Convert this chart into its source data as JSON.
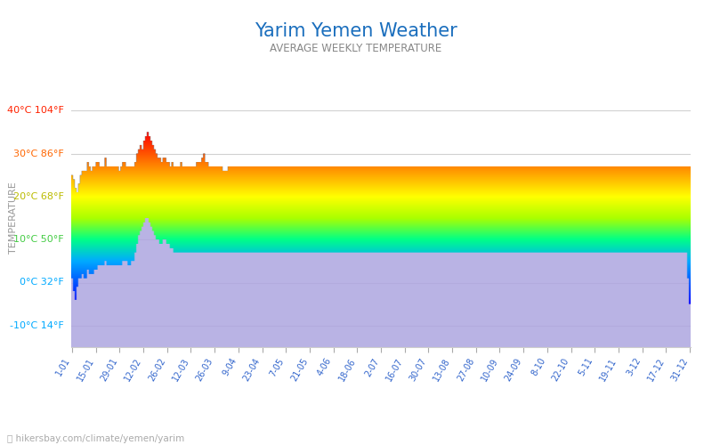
{
  "title": "Yarim Yemen Weather",
  "subtitle": "AVERAGE WEEKLY TEMPERATURE",
  "ylabel": "TEMPERATURE",
  "xlabel_ticks": [
    "1-01",
    "15-01",
    "29-01",
    "12-02",
    "26-02",
    "12-03",
    "26-03",
    "9-04",
    "23-04",
    "7-05",
    "21-05",
    "4-06",
    "18-06",
    "2-07",
    "16-07",
    "30-07",
    "13-08",
    "27-08",
    "10-09",
    "24-09",
    "8-10",
    "22-10",
    "5-11",
    "19-11",
    "3-12",
    "17-12",
    "31-12"
  ],
  "ytick_vals": [
    -10,
    0,
    10,
    20,
    30,
    40
  ],
  "ylim": [
    -15,
    45
  ],
  "ytick_label_map": {
    "-10": "-10°C 14°F",
    "0": "0°C 32°F",
    "10": "10°C 50°F",
    "20": "20°C 68°F",
    "30": "30°C 86°F",
    "40": "40°C 104°F"
  },
  "ytick_color_map": {
    "-10": "#00aaff",
    "0": "#00aaff",
    "10": "#44cc44",
    "20": "#bbbb00",
    "30": "#ff6600",
    "40": "#ff2200"
  },
  "title_color": "#1a6ebd",
  "subtitle_color": "#888888",
  "footer_text": "hikersbay.com/climate/yemen/yarim",
  "day_temps": [
    25,
    24,
    22,
    21,
    23,
    25,
    26,
    26,
    26,
    28,
    27,
    26,
    27,
    27,
    28,
    28,
    27,
    27,
    27,
    29,
    27,
    27,
    27,
    27,
    27,
    27,
    27,
    26,
    27,
    28,
    28,
    27,
    27,
    27,
    27,
    27,
    28,
    30,
    31,
    32,
    31,
    33,
    34,
    35,
    34,
    33,
    32,
    31,
    30,
    29,
    29,
    28,
    29,
    29,
    28,
    28,
    27,
    28,
    27,
    27,
    27,
    27,
    28,
    27,
    27,
    27,
    27,
    27,
    27,
    27,
    27,
    28,
    28,
    28,
    29,
    30,
    28,
    28,
    27,
    27,
    27,
    27,
    27,
    27,
    27,
    27,
    26,
    26,
    26,
    27,
    27,
    27,
    27,
    27,
    27,
    27,
    27,
    27,
    27,
    27,
    27,
    27,
    27,
    27,
    27,
    27,
    27,
    27,
    27,
    27,
    27,
    27,
    27,
    27,
    27,
    27,
    27,
    27,
    27,
    27,
    27,
    27,
    27,
    27,
    27,
    27,
    27,
    27,
    27,
    27,
    27,
    27,
    27,
    27,
    27,
    27,
    27,
    27,
    27,
    27,
    27,
    27,
    27,
    27,
    27,
    27,
    27,
    27,
    27,
    27,
    27,
    27,
    27,
    27,
    27,
    27,
    27,
    27,
    27,
    27,
    27,
    27,
    27,
    27,
    27,
    27,
    27,
    27,
    27,
    27,
    27,
    27,
    27,
    27,
    27,
    27,
    27,
    27,
    27,
    27,
    27,
    27,
    27,
    27,
    27,
    27,
    27,
    27,
    27,
    27,
    27,
    27,
    27,
    27,
    27,
    27,
    27,
    27,
    27,
    27,
    27,
    27,
    27,
    27,
    27,
    27,
    27,
    27,
    27,
    27,
    27,
    27,
    27,
    27,
    27,
    27,
    27,
    27,
    27,
    27,
    27,
    27,
    27,
    27,
    27,
    27,
    27,
    27,
    27,
    27,
    27,
    27,
    27,
    27,
    27,
    27,
    27,
    27,
    27,
    27,
    27,
    27,
    27,
    27,
    27,
    27,
    27,
    27,
    27,
    27,
    27,
    27,
    27,
    27,
    27,
    27,
    27,
    27,
    27,
    27,
    27,
    27,
    27,
    27,
    27,
    27,
    27,
    27,
    27,
    27,
    27,
    27,
    27,
    27,
    27,
    27,
    27,
    27,
    27,
    27,
    27,
    27,
    27,
    27,
    27,
    27,
    27,
    27,
    27,
    27,
    27,
    27,
    27,
    27,
    27,
    27,
    27,
    27,
    27,
    27,
    27,
    27,
    27,
    27,
    27,
    27,
    27,
    27,
    27,
    27,
    27,
    27,
    27,
    27,
    27,
    27,
    27,
    27,
    27,
    27,
    27,
    27,
    27,
    27,
    27,
    27,
    27,
    27,
    27,
    27,
    27,
    27,
    27,
    27,
    27,
    27,
    27,
    27,
    27,
    27,
    27,
    27,
    27,
    27,
    27,
    27,
    27,
    27,
    27,
    27,
    27,
    27,
    27,
    27,
    27,
    30
  ],
  "night_temps": [
    1,
    -2,
    -4,
    -1,
    1,
    1,
    2,
    1,
    1,
    3,
    2,
    2,
    2,
    3,
    3,
    4,
    4,
    4,
    4,
    5,
    4,
    4,
    4,
    4,
    4,
    4,
    4,
    4,
    4,
    5,
    5,
    5,
    4,
    4,
    5,
    5,
    7,
    9,
    11,
    12,
    13,
    14,
    15,
    15,
    14,
    13,
    12,
    11,
    10,
    10,
    9,
    9,
    10,
    10,
    9,
    9,
    8,
    8,
    7,
    7,
    7,
    7,
    7,
    7,
    7,
    7,
    7,
    7,
    7,
    7,
    7,
    7,
    7,
    7,
    7,
    7,
    7,
    7,
    7,
    7,
    7,
    7,
    7,
    7,
    7,
    7,
    7,
    7,
    7,
    7,
    7,
    7,
    7,
    7,
    7,
    7,
    7,
    7,
    7,
    7,
    7,
    7,
    7,
    7,
    7,
    7,
    7,
    7,
    7,
    7,
    7,
    7,
    7,
    7,
    7,
    7,
    7,
    7,
    7,
    7,
    7,
    7,
    7,
    7,
    7,
    7,
    7,
    7,
    7,
    7,
    7,
    7,
    7,
    7,
    7,
    7,
    7,
    7,
    7,
    7,
    7,
    7,
    7,
    7,
    7,
    7,
    7,
    7,
    7,
    7,
    7,
    7,
    7,
    7,
    7,
    7,
    7,
    7,
    7,
    7,
    7,
    7,
    7,
    7,
    7,
    7,
    7,
    7,
    7,
    7,
    7,
    7,
    7,
    7,
    7,
    7,
    7,
    7,
    7,
    7,
    7,
    7,
    7,
    7,
    7,
    7,
    7,
    7,
    7,
    7,
    7,
    7,
    7,
    7,
    7,
    7,
    7,
    7,
    7,
    7,
    7,
    7,
    7,
    7,
    7,
    7,
    7,
    7,
    7,
    7,
    7,
    7,
    7,
    7,
    7,
    7,
    7,
    7,
    7,
    7,
    7,
    7,
    7,
    7,
    7,
    7,
    7,
    7,
    7,
    7,
    7,
    7,
    7,
    7,
    7,
    7,
    7,
    7,
    7,
    7,
    7,
    7,
    7,
    7,
    7,
    7,
    7,
    7,
    7,
    7,
    7,
    7,
    7,
    7,
    7,
    7,
    7,
    7,
    7,
    7,
    7,
    7,
    7,
    7,
    7,
    7,
    7,
    7,
    7,
    7,
    7,
    7,
    7,
    7,
    7,
    7,
    7,
    7,
    7,
    7,
    7,
    7,
    7,
    7,
    7,
    7,
    7,
    7,
    7,
    7,
    7,
    7,
    7,
    7,
    7,
    7,
    7,
    7,
    7,
    7,
    7,
    7,
    7,
    7,
    7,
    7,
    7,
    7,
    7,
    7,
    7,
    7,
    7,
    7,
    7,
    7,
    7,
    7,
    7,
    7,
    7,
    7,
    7,
    7,
    7,
    7,
    7,
    7,
    7,
    7,
    7,
    7,
    7,
    7,
    7,
    7,
    7,
    7,
    7,
    7,
    7,
    7,
    7,
    7,
    7,
    7,
    7,
    7,
    7,
    7,
    1,
    -5
  ]
}
